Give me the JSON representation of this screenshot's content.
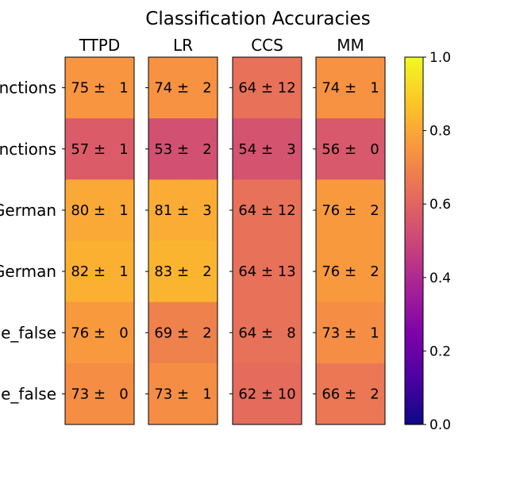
{
  "chart_data": {
    "type": "heatmap",
    "title": "Classification Accuracies",
    "columns": [
      "TTPD",
      "LR",
      "CCS",
      "MM"
    ],
    "row_labels": [
      "nctions",
      "nctions",
      "German",
      "German",
      "e_false",
      "e_false"
    ],
    "cells": [
      [
        {
          "mean": 75,
          "std": 1
        },
        {
          "mean": 74,
          "std": 2
        },
        {
          "mean": 64,
          "std": 12
        },
        {
          "mean": 74,
          "std": 1
        }
      ],
      [
        {
          "mean": 57,
          "std": 1
        },
        {
          "mean": 53,
          "std": 2
        },
        {
          "mean": 54,
          "std": 3
        },
        {
          "mean": 56,
          "std": 0
        }
      ],
      [
        {
          "mean": 80,
          "std": 1
        },
        {
          "mean": 81,
          "std": 3
        },
        {
          "mean": 64,
          "std": 12
        },
        {
          "mean": 76,
          "std": 2
        }
      ],
      [
        {
          "mean": 82,
          "std": 1
        },
        {
          "mean": 83,
          "std": 2
        },
        {
          "mean": 64,
          "std": 13
        },
        {
          "mean": 76,
          "std": 2
        }
      ],
      [
        {
          "mean": 76,
          "std": 0
        },
        {
          "mean": 69,
          "std": 2
        },
        {
          "mean": 64,
          "std": 8
        },
        {
          "mean": 73,
          "std": 1
        }
      ],
      [
        {
          "mean": 73,
          "std": 0
        },
        {
          "mean": 73,
          "std": 1
        },
        {
          "mean": 62,
          "std": 10
        },
        {
          "mean": 66,
          "std": 2
        }
      ]
    ],
    "colormap": "plasma",
    "colorbar": {
      "range": [
        0.0,
        1.0
      ],
      "ticks": [
        "0.0",
        "0.2",
        "0.4",
        "0.6",
        "0.8",
        "1.0"
      ]
    }
  }
}
